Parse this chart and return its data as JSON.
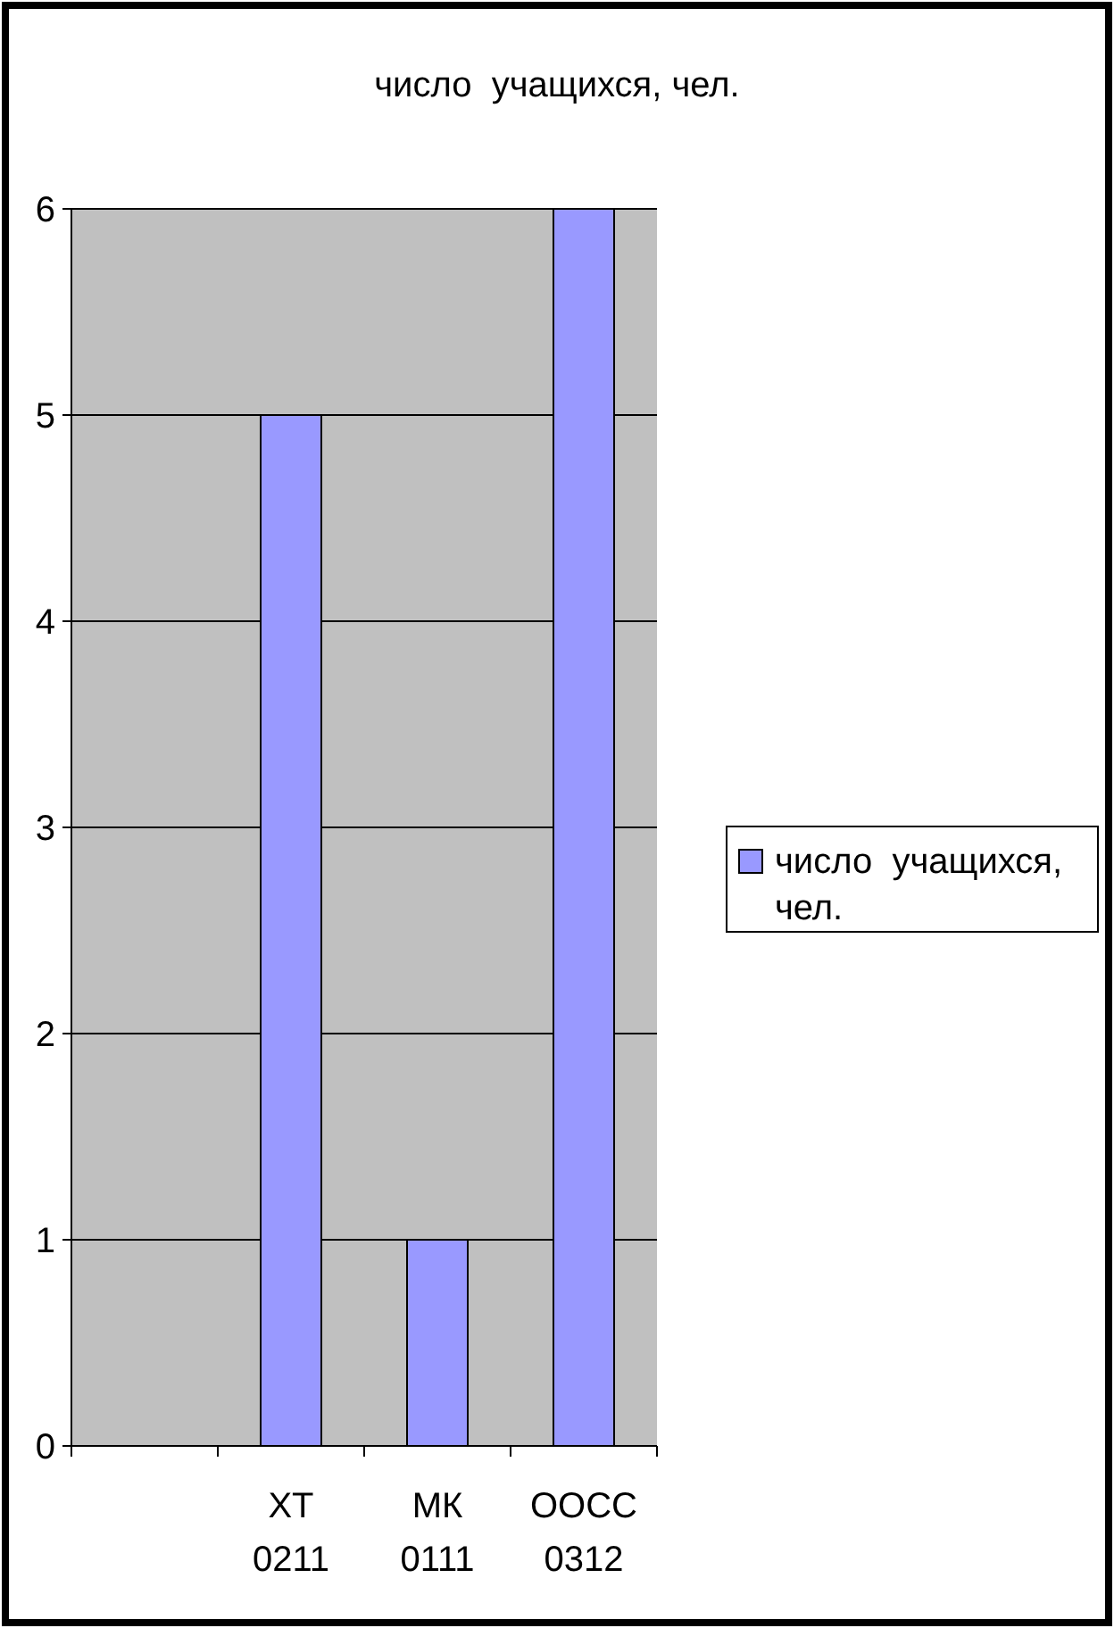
{
  "chart_data": {
    "type": "bar",
    "title": "число  учащихся, чел.",
    "categories": [
      null,
      "ХТ 0211",
      "МК 0111",
      "ООСС 0312"
    ],
    "series": [
      {
        "name": "число  учащихся, чел.",
        "color": "#9999ff",
        "values": [
          null,
          5,
          1,
          6
        ]
      }
    ],
    "ylim": [
      0,
      6
    ],
    "yticks": [
      0,
      1,
      2,
      3,
      4,
      5,
      6
    ],
    "grid": "y",
    "legend": "right"
  }
}
